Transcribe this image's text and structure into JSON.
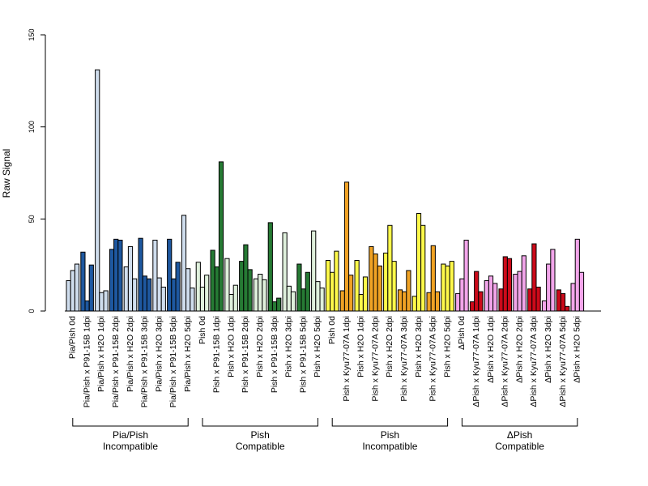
{
  "chart_data": {
    "type": "bar",
    "ylabel": "Raw Signal",
    "ylim": [
      0,
      150
    ],
    "yticks": [
      "0",
      "50",
      "100",
      "150"
    ],
    "grid": false,
    "legend": "none",
    "categories": [
      "Pia/Pish 0d",
      "Pia/Pish x P91-15B 1dpi",
      "Pia/Pish x H2O 1dpi",
      "Pia/Pish x P91-15B 2dpi",
      "Pia/Pish x H2O 2dpi",
      "Pia/Pish x P91-15B 3dpi",
      "Pia/Pish x H2O 3dpi",
      "Pia/Pish x P91-15B 5dpi",
      "Pia/Pish x H2O 5dpi",
      "Pish 0d",
      "Pish x P91-15B 1dpi",
      "Pish x H2O 1dpi",
      "Pish x P91-15B 2dpi",
      "Pish x H2O 2dpi",
      "Pish x P91-15B 3dpi",
      "Pish x H2O 3dpi",
      "Pish x P91-15B 5dpi",
      "Pish x H2O 5dpi",
      "Pish 0d",
      "Pish x Kyu77-07A 1dpi",
      "Pish x H2O 1dpi",
      "Pish x Kyu77-07A 2dpi",
      "Pish x H2O 2dpi",
      "Pish x Kyu77-07A 3dpi",
      "Pish x H2O 3dpi",
      "Pish x Kyu77-07A 5dpi",
      "Pish x H2O 5dpi",
      "ΔPish 0d",
      "ΔPish x Kyu77-07A 1dpi",
      "ΔPish x H2O 1dpi",
      "ΔPish x Kyu77-07A 2dpi",
      "ΔPish x H2O 2dpi",
      "ΔPish x Kyu77-07A 3dpi",
      "ΔPish x H2O 3dpi",
      "ΔPish x Kyu77-07A 5dpi",
      "ΔPish x H2O 5dpi"
    ],
    "colors": [
      "#cfdded",
      "#1e58a0",
      "#dff0dc",
      "#267a34",
      "#fef94a",
      "#f0a224",
      "#f2a5ea",
      "#cc0a1a"
    ],
    "values": [
      [
        16.5,
        22,
        25.5
      ],
      [
        32,
        5.5,
        25
      ],
      [
        131,
        10,
        11
      ],
      [
        33.5,
        39,
        38.5
      ],
      [
        24,
        35,
        17.5
      ],
      [
        39.5,
        19,
        17.5
      ],
      [
        38.5,
        18,
        13
      ],
      [
        39,
        17.5,
        26.5
      ],
      [
        52,
        23,
        12.5
      ],
      [
        26.5,
        13,
        19.5
      ],
      [
        33,
        24,
        81
      ],
      [
        28.5,
        9,
        14
      ],
      [
        27,
        36,
        22.5
      ],
      [
        17.5,
        20,
        17
      ],
      [
        48,
        5,
        7
      ],
      [
        42.5,
        13.5,
        10.5
      ],
      [
        25.5,
        12,
        21
      ],
      [
        43.5,
        16,
        12.5
      ],
      [
        27.5,
        21,
        32.5
      ],
      [
        11,
        70,
        19.5
      ],
      [
        27.5,
        9,
        18.5
      ],
      [
        35,
        31,
        24.5
      ],
      [
        31.5,
        46.5,
        27
      ],
      [
        11.5,
        10.5,
        22
      ],
      [
        8,
        53,
        46.5
      ],
      [
        10,
        35.5,
        10.5
      ],
      [
        25.5,
        24.5,
        27
      ],
      [
        9.5,
        17.5,
        38.5
      ],
      [
        5,
        21.5,
        10.5
      ],
      [
        16.5,
        19,
        15
      ],
      [
        12,
        29.5,
        28.5
      ],
      [
        20,
        21.5,
        30
      ],
      [
        12,
        36.5,
        13
      ],
      [
        5.5,
        25.5,
        33.5
      ],
      [
        11.5,
        9.5,
        2.5
      ],
      [
        15,
        39,
        21
      ]
    ],
    "groups": [
      {
        "label1": "Pia/Pish",
        "label2": "Incompatible"
      },
      {
        "label1": "Pish",
        "label2": "Compatible"
      },
      {
        "label1": "Pish",
        "label2": "Incompatible"
      },
      {
        "label1": "ΔPish",
        "label2": "Compatible"
      }
    ]
  }
}
